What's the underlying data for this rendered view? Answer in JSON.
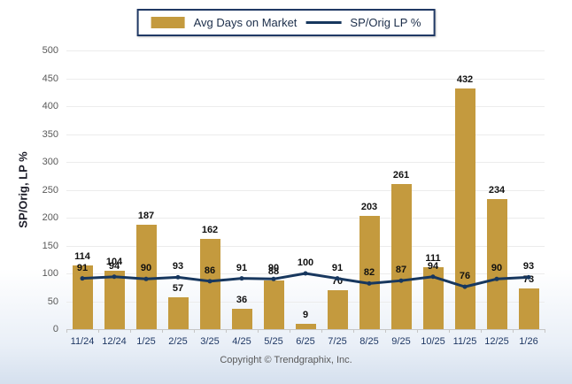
{
  "legend": {
    "bar_label": "Avg Days on Market",
    "line_label": "SP/Orig LP %"
  },
  "axes": {
    "ylabel": "SP/Orig, LP %"
  },
  "footer": {
    "copyright": "Copyright © Trendgraphix, Inc."
  },
  "colors": {
    "bar": "#c49a3e",
    "line": "#17375e",
    "grid": "#ececec",
    "axis": "#c6c6c6",
    "value_label": "#111111",
    "x_tick_label": "#1f3864",
    "y_tick_label": "#595959"
  },
  "chart_data": {
    "type": "bar",
    "title": "",
    "xlabel": "",
    "ylabel": "SP/Orig, LP %",
    "categories": [
      "11/24",
      "12/24",
      "1/25",
      "2/25",
      "3/25",
      "4/25",
      "5/25",
      "6/25",
      "7/25",
      "8/25",
      "9/25",
      "10/25",
      "11/25",
      "12/25",
      "1/26"
    ],
    "series": [
      {
        "name": "Avg Days on Market",
        "type": "bar",
        "values": [
          114,
          104,
          187,
          57,
          162,
          36,
          88,
          9,
          70,
          203,
          261,
          111,
          432,
          234,
          73
        ]
      },
      {
        "name": "SP/Orig LP %",
        "type": "line",
        "values": [
          91,
          94,
          90,
          93,
          86,
          91,
          90,
          100,
          91,
          82,
          87,
          94,
          76,
          90,
          93
        ]
      }
    ],
    "ylim": [
      0,
      500
    ],
    "ytick_step": 50,
    "grid": true,
    "legend_position": "top"
  }
}
